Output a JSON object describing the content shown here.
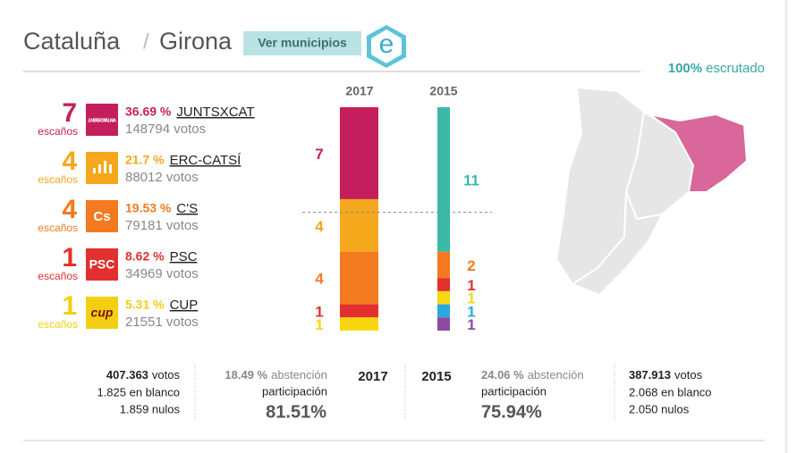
{
  "header": {
    "region": "Cataluña",
    "separator": "/",
    "province": "Girona",
    "button": "Ver municipios",
    "logo": "e",
    "scrutiny_pct": "100%",
    "scrutiny_label": "escrutado"
  },
  "parties": [
    {
      "seats": 7,
      "seats_label": "escaños",
      "pct": "36.69 %",
      "name": "JUNTSXCAT",
      "votes": "148794 votos",
      "color": "#c41f5c",
      "logo_text": "JUNTS PER CATALUNYA"
    },
    {
      "seats": 4,
      "seats_label": "escaños",
      "pct": "21.7 %",
      "name": "ERC-CATSÍ",
      "votes": "88012 votos",
      "color": "#f5a81c"
    },
    {
      "seats": 4,
      "seats_label": "escaños",
      "pct": "19.53 %",
      "name": "C'S",
      "votes": "79181 votos",
      "color": "#f47a20",
      "logo_text": "Cs"
    },
    {
      "seats": 1,
      "seats_label": "escaños",
      "pct": "8.62 %",
      "name": "PSC",
      "votes": "34969 votos",
      "color": "#e2302f",
      "logo_text": "PSC"
    },
    {
      "seats": 1,
      "seats_label": "escaños",
      "pct": "5.31 %",
      "name": "CUP",
      "votes": "21551 votos",
      "color": "#f2cf12",
      "logo_text": "cup"
    }
  ],
  "chart_data": {
    "type": "stacked-bar",
    "categories": [
      "2017",
      "2015"
    ],
    "majority_line": 9,
    "bars": [
      {
        "segments": [
          {
            "value": 7,
            "color": "#c41f5c"
          },
          {
            "value": 4,
            "color": "#f5a81c"
          },
          {
            "value": 4,
            "color": "#f47a20"
          },
          {
            "value": 1,
            "color": "#e2302f"
          },
          {
            "value": 1,
            "color": "#f9d70f"
          }
        ]
      },
      {
        "segments": [
          {
            "value": 11,
            "color": "#3cb8a8"
          },
          {
            "value": 2,
            "color": "#f47a20"
          },
          {
            "value": 1,
            "color": "#e2302f"
          },
          {
            "value": 1,
            "color": "#f9d70f"
          },
          {
            "value": 1,
            "color": "#29a9e0"
          },
          {
            "value": 1,
            "color": "#8e4a9e"
          }
        ]
      }
    ]
  },
  "footer": {
    "left": {
      "votes": {
        "number": "407.363",
        "label": "votos"
      },
      "blank": "1.825 en blanco",
      "null": "1.859 nulos"
    },
    "left_participation": {
      "abstention_pct": "18.49 %",
      "abstention_label": "abstención",
      "label": "participación",
      "value": "81.51%"
    },
    "year_left": "2017",
    "year_right": "2015",
    "right_participation": {
      "abstention_pct": "24.06 %",
      "abstention_label": "abstención",
      "label": "participación",
      "value": "75.94%"
    },
    "right": {
      "votes": {
        "number": "387.913",
        "label": "votos"
      },
      "blank": "2.068 en blanco",
      "null": "2.050 nulos"
    }
  }
}
